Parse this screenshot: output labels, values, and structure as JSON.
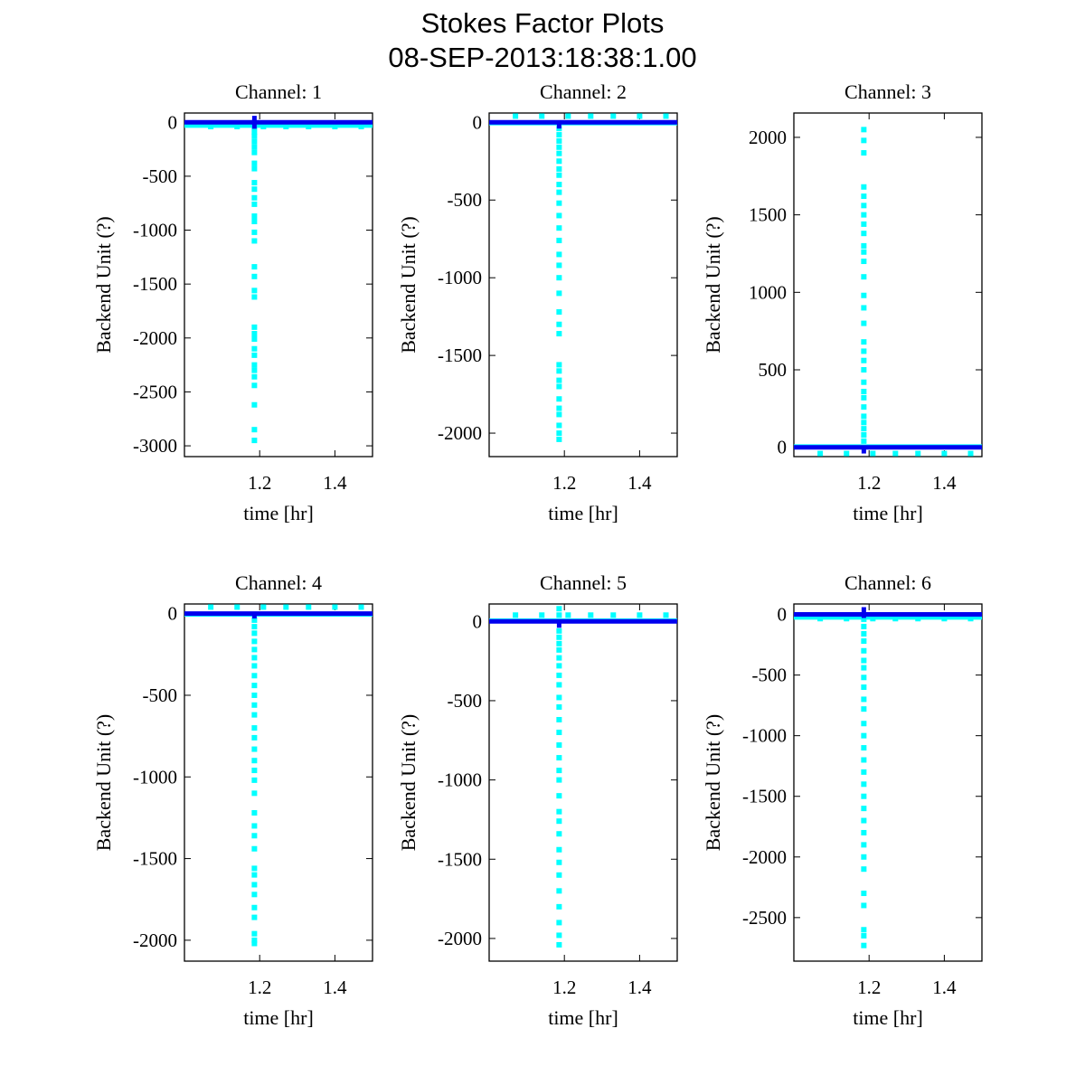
{
  "figure": {
    "title_line1": "Stokes Factor Plots",
    "title_line2": "08-SEP-2013:18:38:1.00"
  },
  "colors": {
    "line": "#0000ee",
    "points": "#00ffff",
    "axis": "#000000"
  },
  "chart_data": [
    {
      "type": "scatter",
      "title": "Channel: 1",
      "xlabel": "time [hr]",
      "ylabel": "Backend Unit (?)",
      "xlim": [
        1.0,
        1.5
      ],
      "ylim": [
        -3100,
        86
      ],
      "xticks": [
        1.2,
        1.4
      ],
      "xtick_labels": [
        "1.2",
        "1.4"
      ],
      "yticks": [
        0,
        -500,
        -1000,
        -1500,
        -2000,
        -2500,
        -3000
      ],
      "ytick_labels": [
        "0",
        "-500",
        "-1000",
        "-1500",
        "-2000",
        "-2500",
        "-3000"
      ],
      "spike_x": 1.186,
      "spike_values": [
        -40,
        -90,
        -130,
        -180,
        -230,
        -280,
        -380,
        -430,
        -560,
        -620,
        -700,
        -760,
        -870,
        -920,
        -1020,
        -1100,
        -1340,
        -1430,
        -1560,
        -1620,
        -1900,
        -1960,
        -2010,
        -2100,
        -2160,
        -2250,
        -2300,
        -2360,
        -2440,
        -2620,
        -2850,
        -2950
      ],
      "spike_line_range": [
        60,
        -60
      ],
      "band_offset": -30,
      "marker_x": [
        1.07,
        1.14,
        1.21,
        1.27,
        1.33,
        1.4,
        1.47
      ],
      "marker_value": -40
    },
    {
      "type": "scatter",
      "title": "Channel: 2",
      "xlabel": "time [hr]",
      "ylabel": "Backend Unit (?)",
      "xlim": [
        1.0,
        1.5
      ],
      "ylim": [
        -2151,
        60
      ],
      "xticks": [
        1.2,
        1.4
      ],
      "xtick_labels": [
        "1.2",
        "1.4"
      ],
      "yticks": [
        0,
        -500,
        -1000,
        -1500,
        -2000
      ],
      "ytick_labels": [
        "0",
        "-500",
        "-1000",
        "-1500",
        "-2000"
      ],
      "spike_x": 1.186,
      "spike_values": [
        -40,
        -80,
        -120,
        -160,
        -200,
        -250,
        -300,
        -340,
        -400,
        -450,
        -520,
        -600,
        -680,
        -760,
        -850,
        -920,
        -1000,
        -1100,
        -1220,
        -1300,
        -1360,
        -1560,
        -1600,
        -1660,
        -1700,
        -1780,
        -1840,
        -1880,
        -1950,
        -2000,
        -2040
      ],
      "spike_line_range": [
        0,
        -40
      ],
      "band_offset": -5,
      "marker_x": [
        1.07,
        1.14,
        1.21,
        1.27,
        1.33,
        1.4,
        1.47
      ],
      "marker_value": 40
    },
    {
      "type": "scatter",
      "title": "Channel: 3",
      "xlabel": "time [hr]",
      "ylabel": "Backend Unit (?)",
      "xlim": [
        1.0,
        1.5
      ],
      "ylim": [
        -60,
        2157
      ],
      "xticks": [
        1.2,
        1.4
      ],
      "xtick_labels": [
        "1.2",
        "1.4"
      ],
      "yticks": [
        0,
        500,
        1000,
        1500,
        2000
      ],
      "ytick_labels": [
        "0",
        "500",
        "1000",
        "1500",
        "2000"
      ],
      "spike_x": 1.186,
      "spike_values": [
        40,
        80,
        120,
        160,
        200,
        260,
        320,
        360,
        420,
        500,
        560,
        620,
        680,
        800,
        900,
        980,
        1100,
        1200,
        1260,
        1300,
        1380,
        1440,
        1500,
        1560,
        1620,
        1680,
        1900,
        1980,
        2050
      ],
      "spike_line_range": [
        0,
        -40
      ],
      "band_offset": 5,
      "marker_x": [
        1.07,
        1.14,
        1.21,
        1.27,
        1.33,
        1.4,
        1.47
      ],
      "marker_value": -40
    },
    {
      "type": "scatter",
      "title": "Channel: 4",
      "xlabel": "time [hr]",
      "ylabel": "Backend Unit (?)",
      "xlim": [
        1.0,
        1.5
      ],
      "ylim": [
        -2128,
        59
      ],
      "xticks": [
        1.2,
        1.4
      ],
      "xtick_labels": [
        "1.2",
        "1.4"
      ],
      "yticks": [
        0,
        -500,
        -1000,
        -1500,
        -2000
      ],
      "ytick_labels": [
        "0",
        "-500",
        "-1000",
        "-1500",
        "-2000"
      ],
      "spike_x": 1.186,
      "spike_values": [
        -40,
        -80,
        -120,
        -170,
        -220,
        -270,
        -320,
        -380,
        -440,
        -500,
        -560,
        -620,
        -700,
        -760,
        -830,
        -900,
        -960,
        -1020,
        -1100,
        -1220,
        -1300,
        -1360,
        -1440,
        -1560,
        -1600,
        -1660,
        -1720,
        -1800,
        -1860,
        -1960,
        -2000,
        -2020
      ],
      "spike_line_range": [
        0,
        -30
      ],
      "band_offset": -5,
      "marker_x": [
        1.07,
        1.14,
        1.21,
        1.27,
        1.33,
        1.4,
        1.47
      ],
      "marker_value": 40
    },
    {
      "type": "scatter",
      "title": "Channel: 5",
      "xlabel": "time [hr]",
      "ylabel": "Backend Unit (?)",
      "xlim": [
        1.0,
        1.5
      ],
      "ylim": [
        -2143,
        110
      ],
      "xticks": [
        1.2,
        1.4
      ],
      "xtick_labels": [
        "1.2",
        "1.4"
      ],
      "yticks": [
        0,
        -500,
        -1000,
        -1500,
        -2000
      ],
      "ytick_labels": [
        "0",
        "-500",
        "-1000",
        "-1500",
        "-2000"
      ],
      "spike_x": 1.186,
      "spike_values": [
        80,
        40,
        -60,
        -100,
        -140,
        -180,
        -230,
        -280,
        -340,
        -400,
        -480,
        -540,
        -620,
        -700,
        -780,
        -860,
        -940,
        -1000,
        -1100,
        -1200,
        -1260,
        -1340,
        -1440,
        -1520,
        -1600,
        -1700,
        -1800,
        -1900,
        -1980,
        -2040
      ],
      "spike_line_range": [
        0,
        -40
      ],
      "band_offset": 5,
      "marker_x": [
        1.07,
        1.14,
        1.21,
        1.27,
        1.33,
        1.4,
        1.47
      ],
      "marker_value": 40
    },
    {
      "type": "scatter",
      "title": "Channel: 6",
      "xlabel": "time [hr]",
      "ylabel": "Backend Unit (?)",
      "xlim": [
        1.0,
        1.5
      ],
      "ylim": [
        -2859,
        86
      ],
      "xticks": [
        1.2,
        1.4
      ],
      "xtick_labels": [
        "1.2",
        "1.4"
      ],
      "yticks": [
        0,
        -500,
        -1000,
        -1500,
        -2000,
        -2500
      ],
      "ytick_labels": [
        "0",
        "-500",
        "-1000",
        "-1500",
        "-2000",
        "-2500"
      ],
      "spike_x": 1.186,
      "spike_values": [
        -40,
        -100,
        -160,
        -220,
        -300,
        -380,
        -440,
        -520,
        -600,
        -700,
        -780,
        -900,
        -1000,
        -1100,
        -1200,
        -1300,
        -1400,
        -1500,
        -1600,
        -1700,
        -1800,
        -1900,
        -2000,
        -2100,
        -2300,
        -2400,
        -2600,
        -2650,
        -2730
      ],
      "spike_line_range": [
        60,
        -30
      ],
      "band_offset": -25,
      "marker_x": [
        1.07,
        1.14,
        1.21,
        1.27,
        1.33,
        1.4,
        1.47
      ],
      "marker_value": -35
    }
  ]
}
